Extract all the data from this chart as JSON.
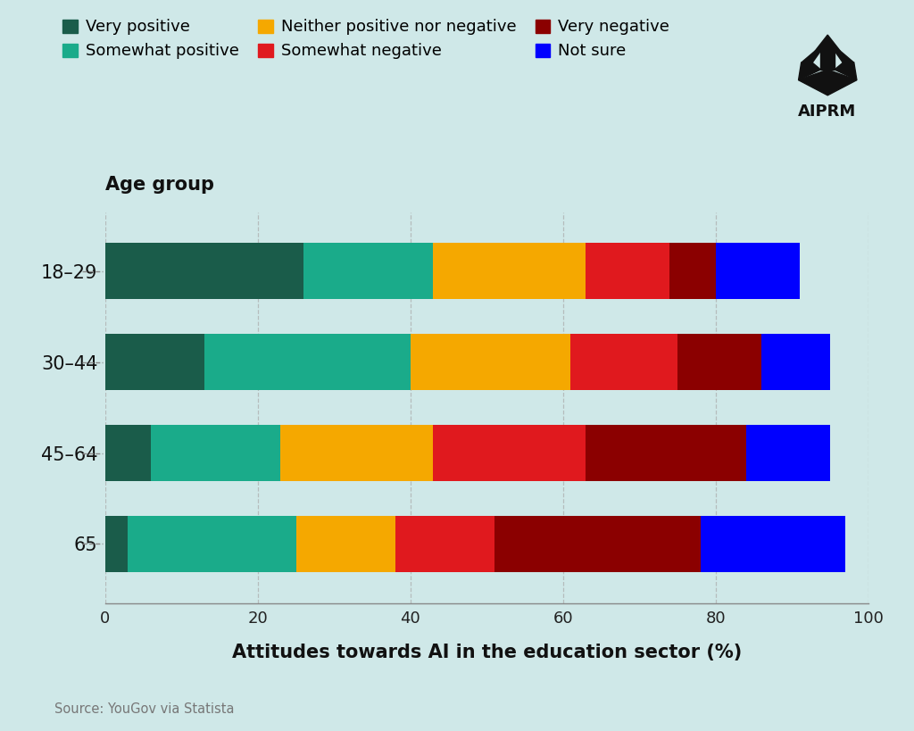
{
  "categories": [
    "18–29",
    "30–44",
    "45–64",
    "65"
  ],
  "series": [
    {
      "label": "Very positive",
      "color": "#1a5c4a",
      "values": [
        26,
        13,
        6,
        3
      ]
    },
    {
      "label": "Somewhat positive",
      "color": "#1aab8a",
      "values": [
        17,
        27,
        17,
        22
      ]
    },
    {
      "label": "Neither positive nor negative",
      "color": "#f5a800",
      "values": [
        20,
        21,
        20,
        13
      ]
    },
    {
      "label": "Somewhat negative",
      "color": "#e0191e",
      "values": [
        11,
        14,
        20,
        13
      ]
    },
    {
      "label": "Very negative",
      "color": "#8b0000",
      "values": [
        6,
        11,
        21,
        27
      ]
    },
    {
      "label": "Not sure",
      "color": "#0000ff",
      "values": [
        11,
        9,
        11,
        19
      ]
    }
  ],
  "xlabel": "Attitudes towards AI in the education sector (%)",
  "ylabel_title": "Age group",
  "xticks": [
    0,
    20,
    40,
    60,
    80,
    100
  ],
  "background_color": "#cfe8e8",
  "source_text": "Source: YouGov via Statista",
  "bar_height": 0.62,
  "grid_color": "#aaaaaa",
  "aiprm_text": "AIPRM"
}
